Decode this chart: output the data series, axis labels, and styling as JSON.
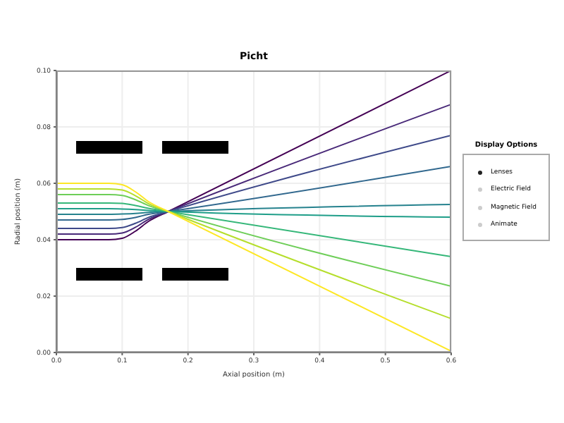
{
  "chart_data": {
    "type": "line",
    "title": "Picht",
    "xlabel": "Axial position (m)",
    "ylabel": "Radial position (m)",
    "x": [
      0,
      0.08,
      0.1,
      0.12,
      0.14,
      0.17,
      0.6
    ],
    "series": [
      {
        "color": "#440154",
        "values": [
          0.04,
          0.04,
          0.0405,
          0.043,
          0.0465,
          0.05,
          0.1
        ]
      },
      {
        "color": "#482878",
        "values": [
          0.042,
          0.042,
          0.0424,
          0.0444,
          0.0472,
          0.05,
          0.088
        ]
      },
      {
        "color": "#3e4989",
        "values": [
          0.044,
          0.044,
          0.0443,
          0.0458,
          0.0479,
          0.05,
          0.077
        ]
      },
      {
        "color": "#31688e",
        "values": [
          0.047,
          0.047,
          0.0472,
          0.0479,
          0.049,
          0.05,
          0.066
        ]
      },
      {
        "color": "#26828e",
        "values": [
          0.049,
          0.049,
          0.0491,
          0.0493,
          0.0497,
          0.05,
          0.0525
        ]
      },
      {
        "color": "#1f9e89",
        "values": [
          0.051,
          0.051,
          0.0509,
          0.0507,
          0.0504,
          0.05,
          0.048
        ]
      },
      {
        "color": "#35b779",
        "values": [
          0.053,
          0.053,
          0.0529,
          0.0521,
          0.0511,
          0.05,
          0.034
        ]
      },
      {
        "color": "#6ece58",
        "values": [
          0.056,
          0.056,
          0.0557,
          0.0542,
          0.0521,
          0.05,
          0.0235
        ]
      },
      {
        "color": "#b5de2b",
        "values": [
          0.058,
          0.058,
          0.0576,
          0.0556,
          0.0528,
          0.05,
          0.012
        ]
      },
      {
        "color": "#fde725",
        "values": [
          0.06,
          0.06,
          0.0595,
          0.057,
          0.0535,
          0.05,
          0.0005
        ]
      }
    ],
    "xlim": [
      0,
      0.6
    ],
    "xticks": [
      {
        "value": 0,
        "label": "0.0"
      },
      0.1,
      0.2,
      0.3,
      0.4,
      0.5,
      0.6
    ],
    "ylim": [
      0,
      0.1
    ],
    "yticks": [
      {
        "value": 0,
        "label": "0.00"
      },
      0.02,
      0.04,
      0.06,
      0.08,
      {
        "value": 0.1,
        "label": "0.10"
      }
    ],
    "grid": true,
    "marker": "none",
    "line_style": "solid",
    "annotations": [
      "Display Options",
      "Lenses",
      "Electric Field",
      "Magnetic Field",
      "Animate"
    ]
  }
}
